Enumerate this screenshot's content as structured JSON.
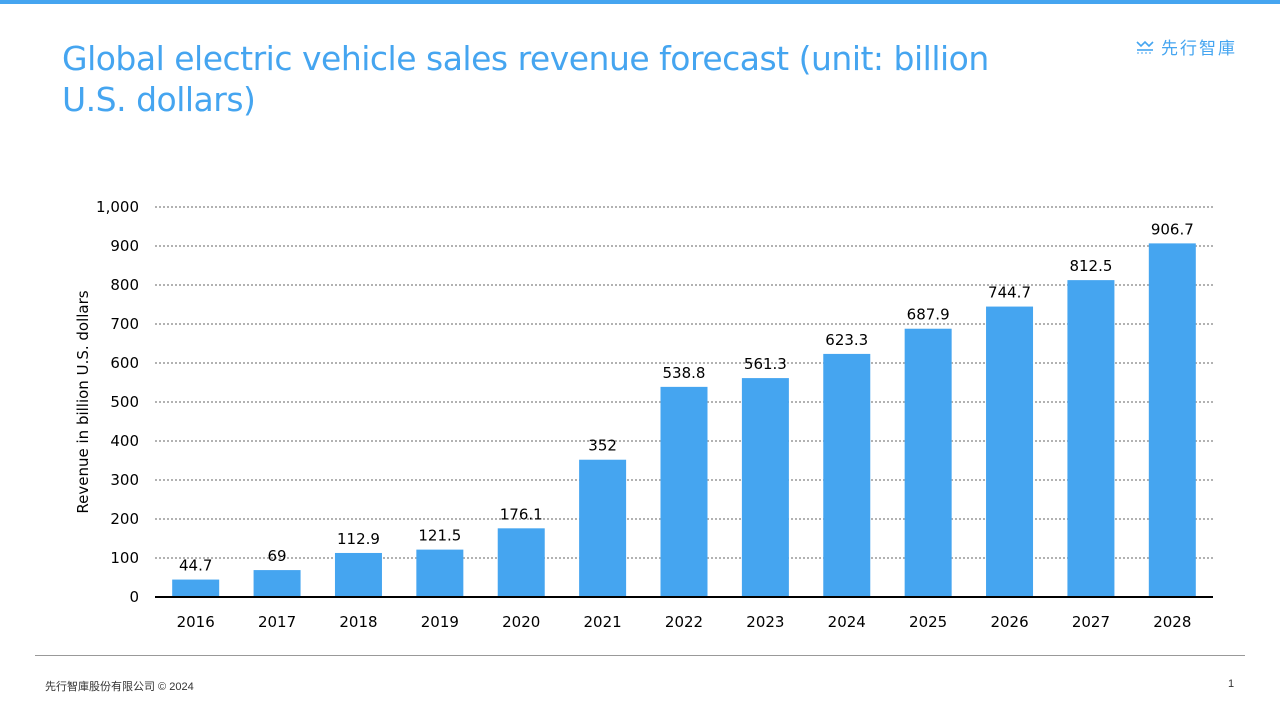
{
  "title": "Global electric vehicle sales revenue forecast (unit: billion U.S. dollars)",
  "logo_text": "先行智庫",
  "footer": "先行智庫股份有限公司 © 2024",
  "page_number": "1",
  "colors": {
    "accent": "#45a5f0",
    "bar": "#45a5f0"
  },
  "chart_data": {
    "type": "bar",
    "title": "Global electric vehicle sales revenue forecast (unit: billion U.S. dollars)",
    "xlabel": "",
    "ylabel": "Revenue in billion U.S. dollars",
    "categories": [
      "2016",
      "2017",
      "2018",
      "2019",
      "2020",
      "2021",
      "2022",
      "2023",
      "2024",
      "2025",
      "2026",
      "2027",
      "2028"
    ],
    "values": [
      44.7,
      69,
      112.9,
      121.5,
      176.1,
      352,
      538.8,
      561.3,
      623.3,
      687.9,
      744.7,
      812.5,
      906.7
    ],
    "data_labels": [
      "44.7",
      "69",
      "112.9",
      "121.5",
      "176.1",
      "352",
      "538.8",
      "561.3",
      "623.3",
      "687.9",
      "744.7",
      "812.5",
      "906.7"
    ],
    "ylim": [
      0,
      1000
    ],
    "yticks": [
      0,
      100,
      200,
      300,
      400,
      500,
      600,
      700,
      800,
      900,
      1000
    ],
    "ytick_labels": [
      "0",
      "100",
      "200",
      "300",
      "400",
      "500",
      "600",
      "700",
      "800",
      "900",
      "1,000"
    ],
    "grid": true,
    "legend": "none"
  }
}
